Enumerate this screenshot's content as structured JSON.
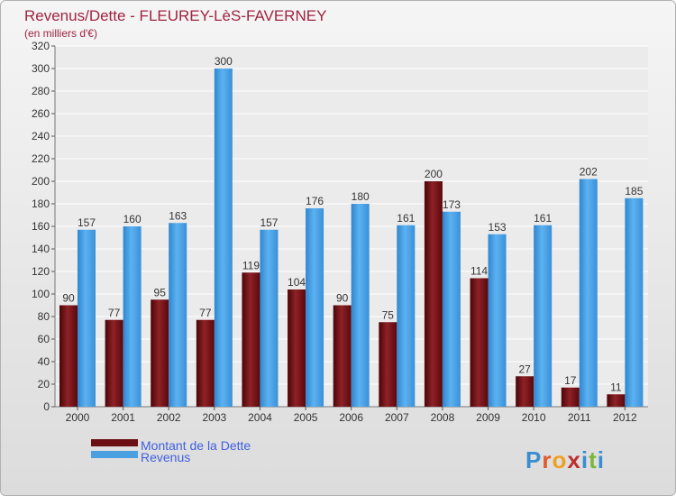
{
  "chart_data": {
    "type": "bar",
    "title": "Revenus/Dette - FLEUREY-LèS-FAVERNEY",
    "subtitle": "(en milliers d'€)",
    "categories": [
      "2000",
      "2001",
      "2002",
      "2003",
      "2004",
      "2005",
      "2006",
      "2007",
      "2008",
      "2009",
      "2010",
      "2011",
      "2012"
    ],
    "series": [
      {
        "name": "Montant de la Dette",
        "color": "#6b0f14",
        "values": [
          90,
          77,
          95,
          77,
          119,
          104,
          90,
          75,
          200,
          114,
          27,
          17,
          11
        ]
      },
      {
        "name": "Revenus",
        "color": "#4a9fe0",
        "values": [
          157,
          160,
          163,
          300,
          157,
          176,
          180,
          161,
          173,
          153,
          161,
          202,
          185
        ]
      }
    ],
    "ylim": [
      0,
      320
    ],
    "yticks": [
      0,
      20,
      40,
      60,
      80,
      100,
      120,
      140,
      160,
      180,
      200,
      220,
      240,
      260,
      280,
      300,
      320
    ],
    "grid": true,
    "legend_position": "bottom-left"
  },
  "watermark": "Proxiti"
}
